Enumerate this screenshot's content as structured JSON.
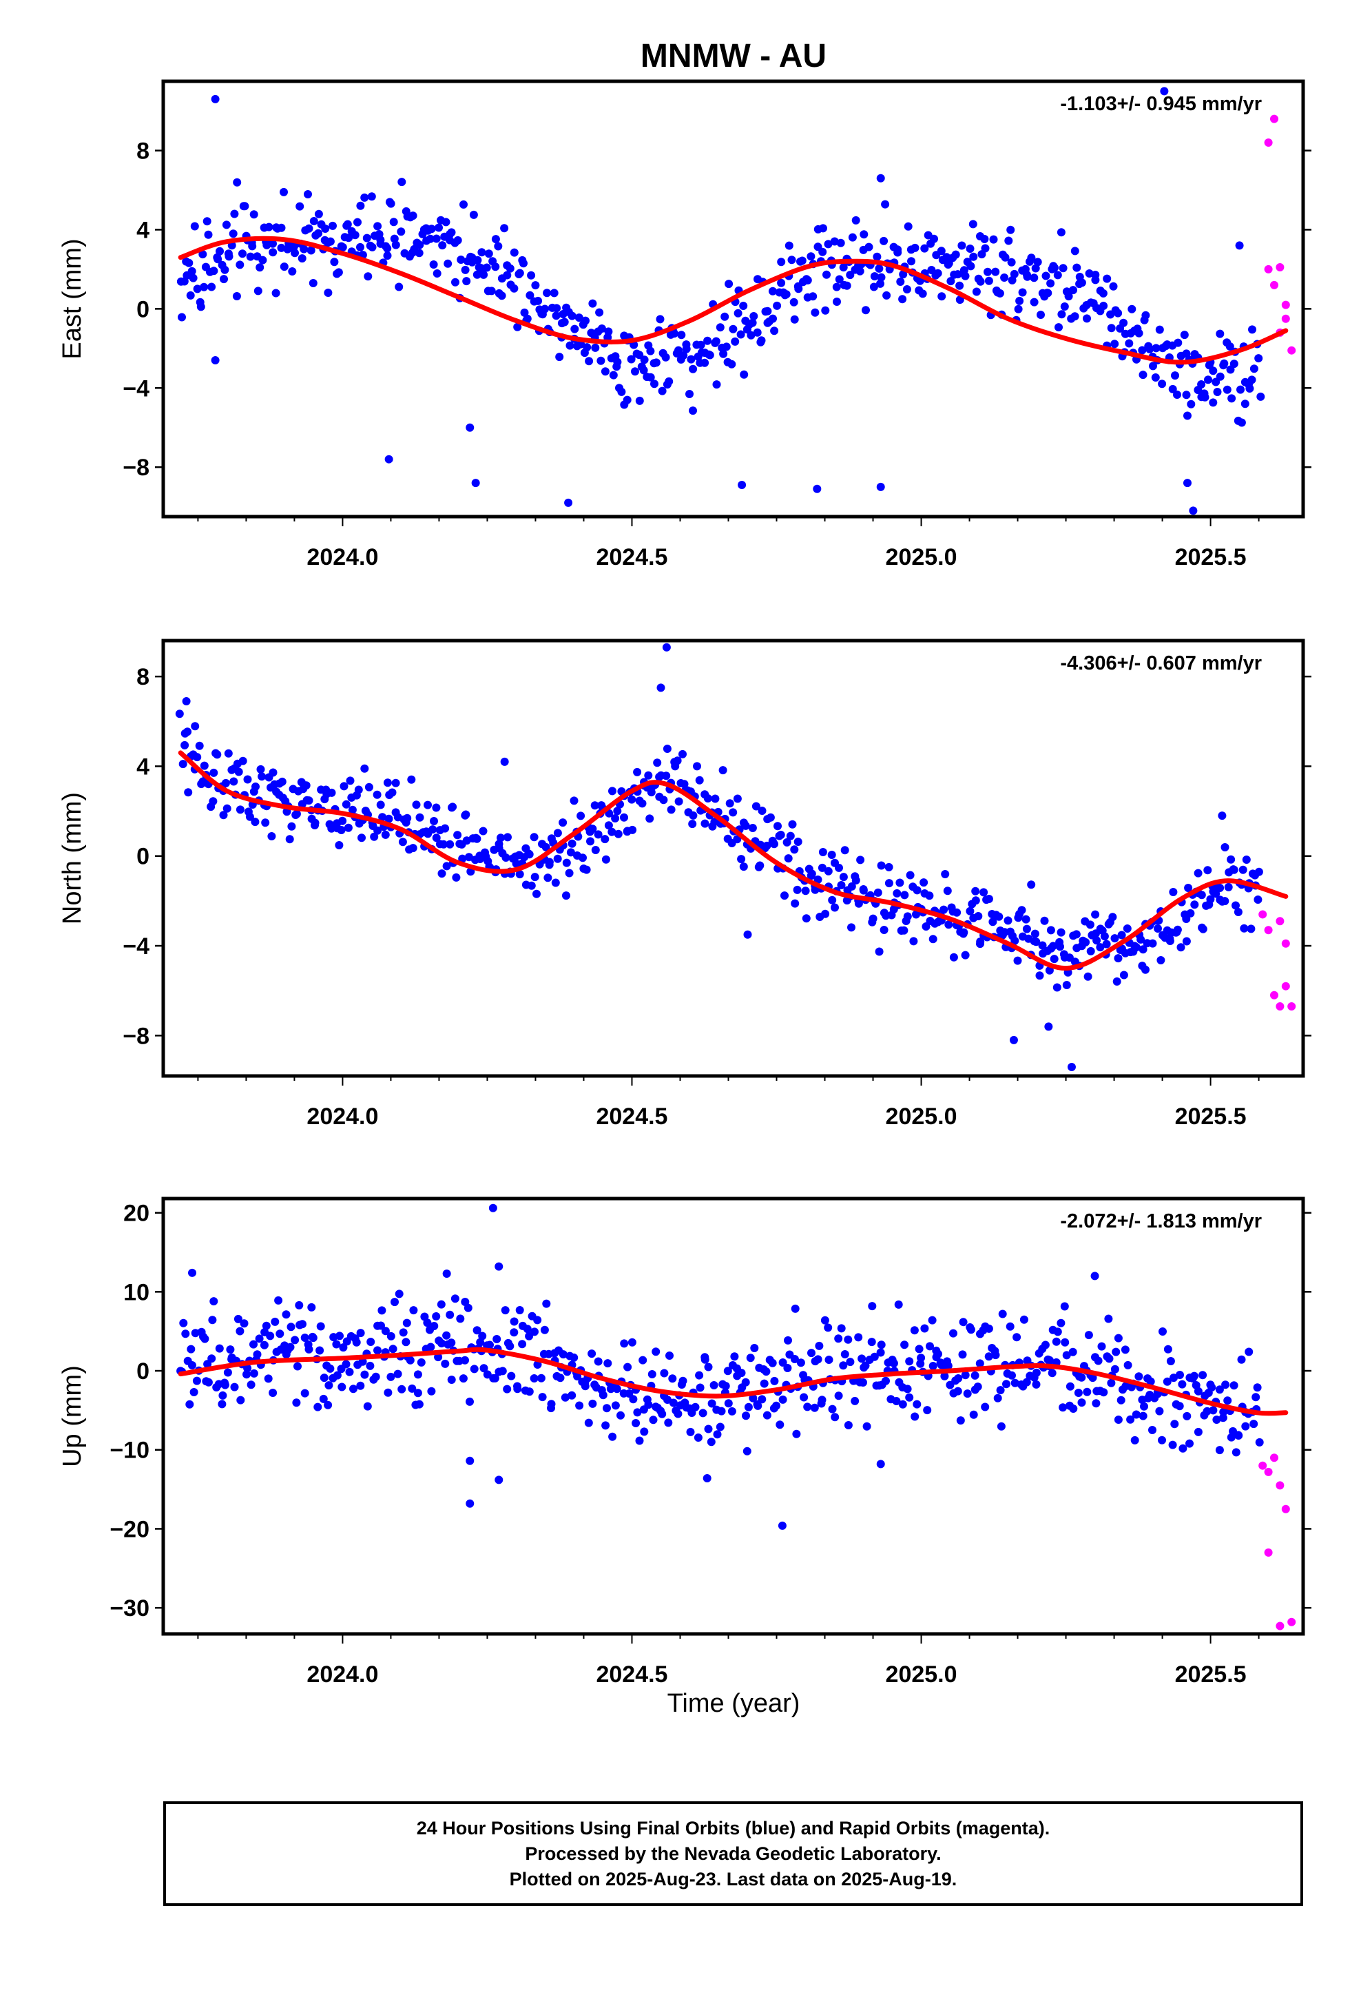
{
  "title": "MNMW - AU",
  "x_label": "Time (year)",
  "footer_lines": [
    "24 Hour Positions Using Final Orbits (blue) and Rapid Orbits (magenta).",
    "Processed by the Nevada Geodetic Laboratory.",
    "Plotted on 2025-Aug-23. Last data on 2025-Aug-19."
  ],
  "colors": {
    "final": "#0000ff",
    "rapid": "#ff00ff",
    "fit": "#ff0000"
  },
  "chart_data": [
    {
      "type": "scatter",
      "ylabel": "East (mm)",
      "rate": "-1.103+/- 0.945 mm/yr",
      "xlim": [
        2023.69,
        2025.66
      ],
      "ylim": [
        -10.5,
        11.5
      ],
      "xticks": [
        2024.0,
        2024.5,
        2025.0,
        2025.5
      ],
      "xtick_labels": [
        "2024.0",
        "2024.5",
        "2025.0",
        "2025.5"
      ],
      "yticks": [
        -8,
        -4,
        0,
        4,
        8
      ],
      "ytick_labels": [
        "−8",
        "−4",
        "0",
        "4",
        "8"
      ],
      "fit": {
        "x": [
          2023.72,
          2023.8,
          2023.9,
          2024.0,
          2024.1,
          2024.2,
          2024.3,
          2024.4,
          2024.5,
          2024.6,
          2024.7,
          2024.8,
          2024.87,
          2024.95,
          2025.05,
          2025.15,
          2025.25,
          2025.35,
          2025.45,
          2025.55,
          2025.63
        ],
        "y": [
          2.6,
          3.4,
          3.5,
          2.8,
          1.8,
          0.6,
          -0.6,
          -1.5,
          -1.6,
          -0.6,
          0.9,
          2.1,
          2.4,
          2.2,
          1.0,
          -0.5,
          -1.5,
          -2.2,
          -2.7,
          -2.1,
          -1.1
        ]
      },
      "final": {
        "seasonal": [
          [
            0,
            0.4
          ],
          [
            0.08,
            2.3
          ],
          [
            0.18,
            3.3
          ],
          [
            0.28,
            2.9
          ],
          [
            0.4,
            0.8
          ],
          [
            0.5,
            -1.3
          ],
          [
            0.6,
            -2.4
          ],
          [
            0.72,
            -1.8
          ],
          [
            0.82,
            -0.4
          ],
          [
            0.92,
            0.4
          ],
          [
            1.0,
            0.4
          ]
        ],
        "noise": 1.6,
        "outliers": [
          [
            2023.78,
            10.6
          ],
          [
            2023.78,
            -2.6
          ],
          [
            2024.08,
            -7.6
          ],
          [
            2024.23,
            -8.8
          ],
          [
            2024.22,
            -6.0
          ],
          [
            2024.39,
            -9.8
          ],
          [
            2024.69,
            -8.9
          ],
          [
            2024.82,
            -9.1
          ],
          [
            2024.93,
            6.6
          ],
          [
            2024.93,
            -9.0
          ],
          [
            2025.46,
            -8.8
          ],
          [
            2025.47,
            -10.2
          ],
          [
            2025.42,
            11.0
          ],
          [
            2025.55,
            3.2
          ],
          [
            2025.46,
            -5.4
          ]
        ]
      },
      "rapid": {
        "x": [
          2025.6,
          2025.61,
          2025.62,
          2025.6,
          2025.61,
          2025.63,
          2025.63,
          2025.62,
          2025.64
        ],
        "y": [
          8.4,
          9.6,
          2.1,
          2.0,
          1.2,
          0.2,
          -0.5,
          -1.2,
          -2.1
        ]
      }
    },
    {
      "type": "scatter",
      "ylabel": "North (mm)",
      "rate": "-4.306+/- 0.607 mm/yr",
      "xlim": [
        2023.69,
        2025.66
      ],
      "ylim": [
        -9.8,
        9.6
      ],
      "xticks": [
        2024.0,
        2024.5,
        2025.0,
        2025.5
      ],
      "xtick_labels": [
        "2024.0",
        "2024.5",
        "2025.0",
        "2025.5"
      ],
      "yticks": [
        -8,
        -4,
        0,
        4,
        8
      ],
      "ytick_labels": [
        "−8",
        "−4",
        "0",
        "4",
        "8"
      ],
      "fit": {
        "x": [
          2023.72,
          2023.8,
          2023.9,
          2024.0,
          2024.1,
          2024.2,
          2024.3,
          2024.4,
          2024.5,
          2024.56,
          2024.65,
          2024.75,
          2024.85,
          2024.95,
          2025.05,
          2025.15,
          2025.25,
          2025.35,
          2025.45,
          2025.53,
          2025.63
        ],
        "y": [
          4.6,
          2.9,
          2.2,
          1.9,
          1.2,
          -0.3,
          -0.6,
          1.0,
          2.9,
          3.2,
          1.7,
          -0.3,
          -1.6,
          -2.1,
          -2.8,
          -3.9,
          -5.0,
          -3.8,
          -1.9,
          -1.1,
          -1.8
        ]
      },
      "final": {
        "seasonal": [
          [
            0,
            0.1
          ],
          [
            0.08,
            0.7
          ],
          [
            0.18,
            0.9
          ],
          [
            0.28,
            0.6
          ],
          [
            0.4,
            -0.9
          ],
          [
            0.5,
            -0.6
          ],
          [
            0.6,
            0.4
          ],
          [
            0.72,
            0.4
          ],
          [
            0.82,
            0.2
          ],
          [
            0.92,
            0.0
          ],
          [
            1.0,
            0.1
          ]
        ],
        "noise": 1.2,
        "outliers": [
          [
            2023.73,
            6.9
          ],
          [
            2024.56,
            9.3
          ],
          [
            2024.55,
            7.5
          ],
          [
            2024.28,
            4.2
          ],
          [
            2025.16,
            -8.2
          ],
          [
            2025.26,
            -9.4
          ],
          [
            2025.22,
            -7.6
          ],
          [
            2024.7,
            -3.5
          ],
          [
            2025.52,
            1.8
          ]
        ]
      },
      "rapid": {
        "x": [
          2025.59,
          2025.6,
          2025.61,
          2025.62,
          2025.63,
          2025.63,
          2025.64,
          2025.62
        ],
        "y": [
          -2.6,
          -3.3,
          -6.2,
          -6.7,
          -3.9,
          -5.8,
          -6.7,
          -2.9
        ]
      }
    },
    {
      "type": "scatter",
      "ylabel": "Up (mm)",
      "rate": "-2.072+/- 1.813 mm/yr",
      "xlim": [
        2023.69,
        2025.66
      ],
      "ylim": [
        -33.3,
        21.8
      ],
      "xticks": [
        2024.0,
        2024.5,
        2025.0,
        2025.5
      ],
      "xtick_labels": [
        "2024.0",
        "2024.5",
        "2025.0",
        "2025.5"
      ],
      "yticks": [
        -30,
        -20,
        -10,
        0,
        10,
        20
      ],
      "ytick_labels": [
        "−30",
        "−20",
        "−10",
        "0",
        "10",
        "20"
      ],
      "fit": {
        "x": [
          2023.72,
          2023.85,
          2024.0,
          2024.1,
          2024.2,
          2024.25,
          2024.35,
          2024.45,
          2024.55,
          2024.65,
          2024.75,
          2024.85,
          2024.95,
          2025.05,
          2025.15,
          2025.22,
          2025.3,
          2025.4,
          2025.5,
          2025.58,
          2025.63
        ],
        "y": [
          -0.4,
          1.1,
          1.6,
          2.0,
          2.5,
          2.6,
          1.2,
          -1.0,
          -2.6,
          -3.2,
          -2.4,
          -1.0,
          -0.4,
          0.0,
          0.5,
          0.6,
          -0.3,
          -2.1,
          -4.1,
          -5.3,
          -5.3
        ]
      },
      "final": {
        "seasonal": [
          [
            0,
            -0.6
          ],
          [
            0.08,
            0.7
          ],
          [
            0.18,
            1.3
          ],
          [
            0.28,
            0.7
          ],
          [
            0.4,
            -0.6
          ],
          [
            0.5,
            -0.9
          ],
          [
            0.6,
            0.1
          ],
          [
            0.72,
            1.4
          ],
          [
            0.82,
            1.0
          ],
          [
            0.92,
            0.1
          ],
          [
            1.0,
            -0.6
          ]
        ],
        "noise": 4.6,
        "outliers": [
          [
            2024.26,
            20.6
          ],
          [
            2024.27,
            13.2
          ],
          [
            2024.22,
            -16.8
          ],
          [
            2024.22,
            -11.4
          ],
          [
            2024.27,
            -13.8
          ],
          [
            2024.76,
            -19.6
          ],
          [
            2024.63,
            -13.6
          ],
          [
            2023.74,
            12.4
          ],
          [
            2024.18,
            12.3
          ],
          [
            2025.3,
            12.0
          ],
          [
            2024.93,
            -11.8
          ]
        ]
      },
      "rapid": {
        "x": [
          2025.59,
          2025.6,
          2025.61,
          2025.62,
          2025.63,
          2025.6,
          2025.62,
          2025.64
        ],
        "y": [
          -12.0,
          -12.8,
          -11.0,
          -14.5,
          -17.5,
          -23.0,
          -32.3,
          -31.8
        ]
      }
    }
  ]
}
